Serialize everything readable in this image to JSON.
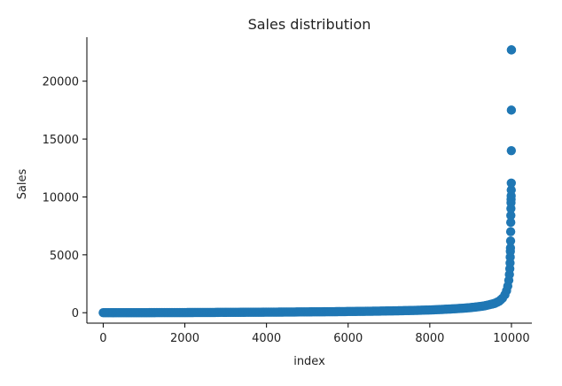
{
  "chart_data": {
    "type": "scatter",
    "title": "Sales distribution",
    "xlabel": "index",
    "ylabel": "Sales",
    "xlim": [
      -400,
      10500
    ],
    "ylim": [
      -900,
      23800
    ],
    "xticks": [
      0,
      2000,
      4000,
      6000,
      8000,
      10000
    ],
    "yticks": [
      0,
      5000,
      10000,
      15000,
      20000
    ],
    "xtick_labels": [
      "0",
      "2000",
      "4000",
      "6000",
      "8000",
      "10000"
    ],
    "ytick_labels": [
      "0",
      "5000",
      "10000",
      "15000",
      "20000"
    ],
    "grid": false,
    "marker_color": "#1f77b4",
    "series": [
      {
        "x": [
          0,
          400,
          800,
          1200,
          1600,
          2000,
          2400,
          2800,
          3200,
          3600,
          4000,
          4400,
          4800,
          5200,
          5600,
          6000,
          6400,
          6800,
          7200,
          7600,
          8000,
          8300,
          8600,
          8900,
          9100,
          9300,
          9450,
          9600,
          9700,
          9780,
          9840,
          9880,
          9910,
          9935,
          9950,
          9960,
          9966,
          9970,
          9973,
          9976,
          9979,
          9981,
          9983,
          9985,
          9987,
          9989,
          9991,
          9993,
          9995,
          9996,
          9997,
          9998,
          9999,
          10000
        ],
        "y": [
          0,
          2,
          5,
          8,
          12,
          16,
          21,
          27,
          33,
          40,
          48,
          57,
          67,
          78,
          90,
          105,
          122,
          142,
          168,
          198,
          240,
          285,
          340,
          410,
          480,
          570,
          680,
          820,
          1000,
          1250,
          1550,
          1900,
          2300,
          2800,
          3300,
          3800,
          4300,
          4800,
          5300,
          5600,
          6200,
          7000,
          7800,
          8400,
          9000,
          9500,
          9800,
          10100,
          10600,
          11200,
          14000,
          17500,
          22700,
          22700
        ]
      }
    ]
  }
}
